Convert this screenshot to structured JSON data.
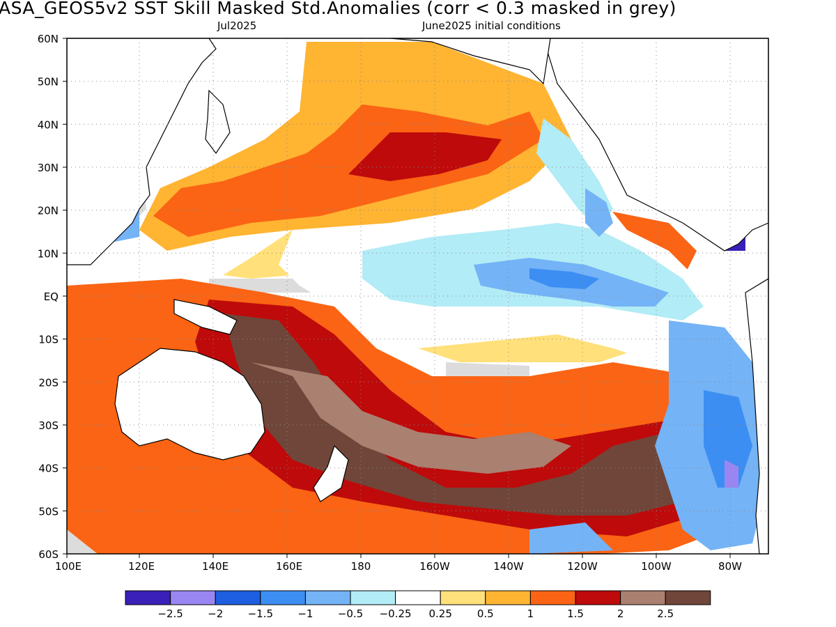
{
  "title": "ASA_GEOS5v2  SST Skill Masked Std.Anomalies (corr < 0.3 masked in grey)",
  "subtitle_left": "Jul2025",
  "subtitle_right": "June2025 initial conditions",
  "y_axis_labels": [
    "60N",
    "50N",
    "40N",
    "30N",
    "20N",
    "10N",
    "EQ",
    "10S",
    "20S",
    "30S",
    "40S",
    "50S",
    "60S"
  ],
  "x_axis_labels": [
    "100E",
    "120E",
    "140E",
    "160E",
    "180",
    "160W",
    "140W",
    "120W",
    "100W",
    "80W"
  ],
  "colorbar": {
    "colors": [
      "#3a1fb8",
      "#9a86f2",
      "#1e5ee0",
      "#3c8ef2",
      "#74b3f6",
      "#b2ecf6",
      "#ffffff",
      "#ffe07a",
      "#ffb432",
      "#fa6414",
      "#be0a0a",
      "#aa8070",
      "#70463a"
    ],
    "labels": [
      "-2.5",
      "-2",
      "-1.5",
      "-1",
      "-0.5",
      "-0.25",
      "0.25",
      "0.5",
      "1",
      "1.5",
      "2",
      "2.5"
    ]
  },
  "map_colors": {
    "land": "#ffffff",
    "masked": "#dcdcdc",
    "frame": "#000000"
  }
}
